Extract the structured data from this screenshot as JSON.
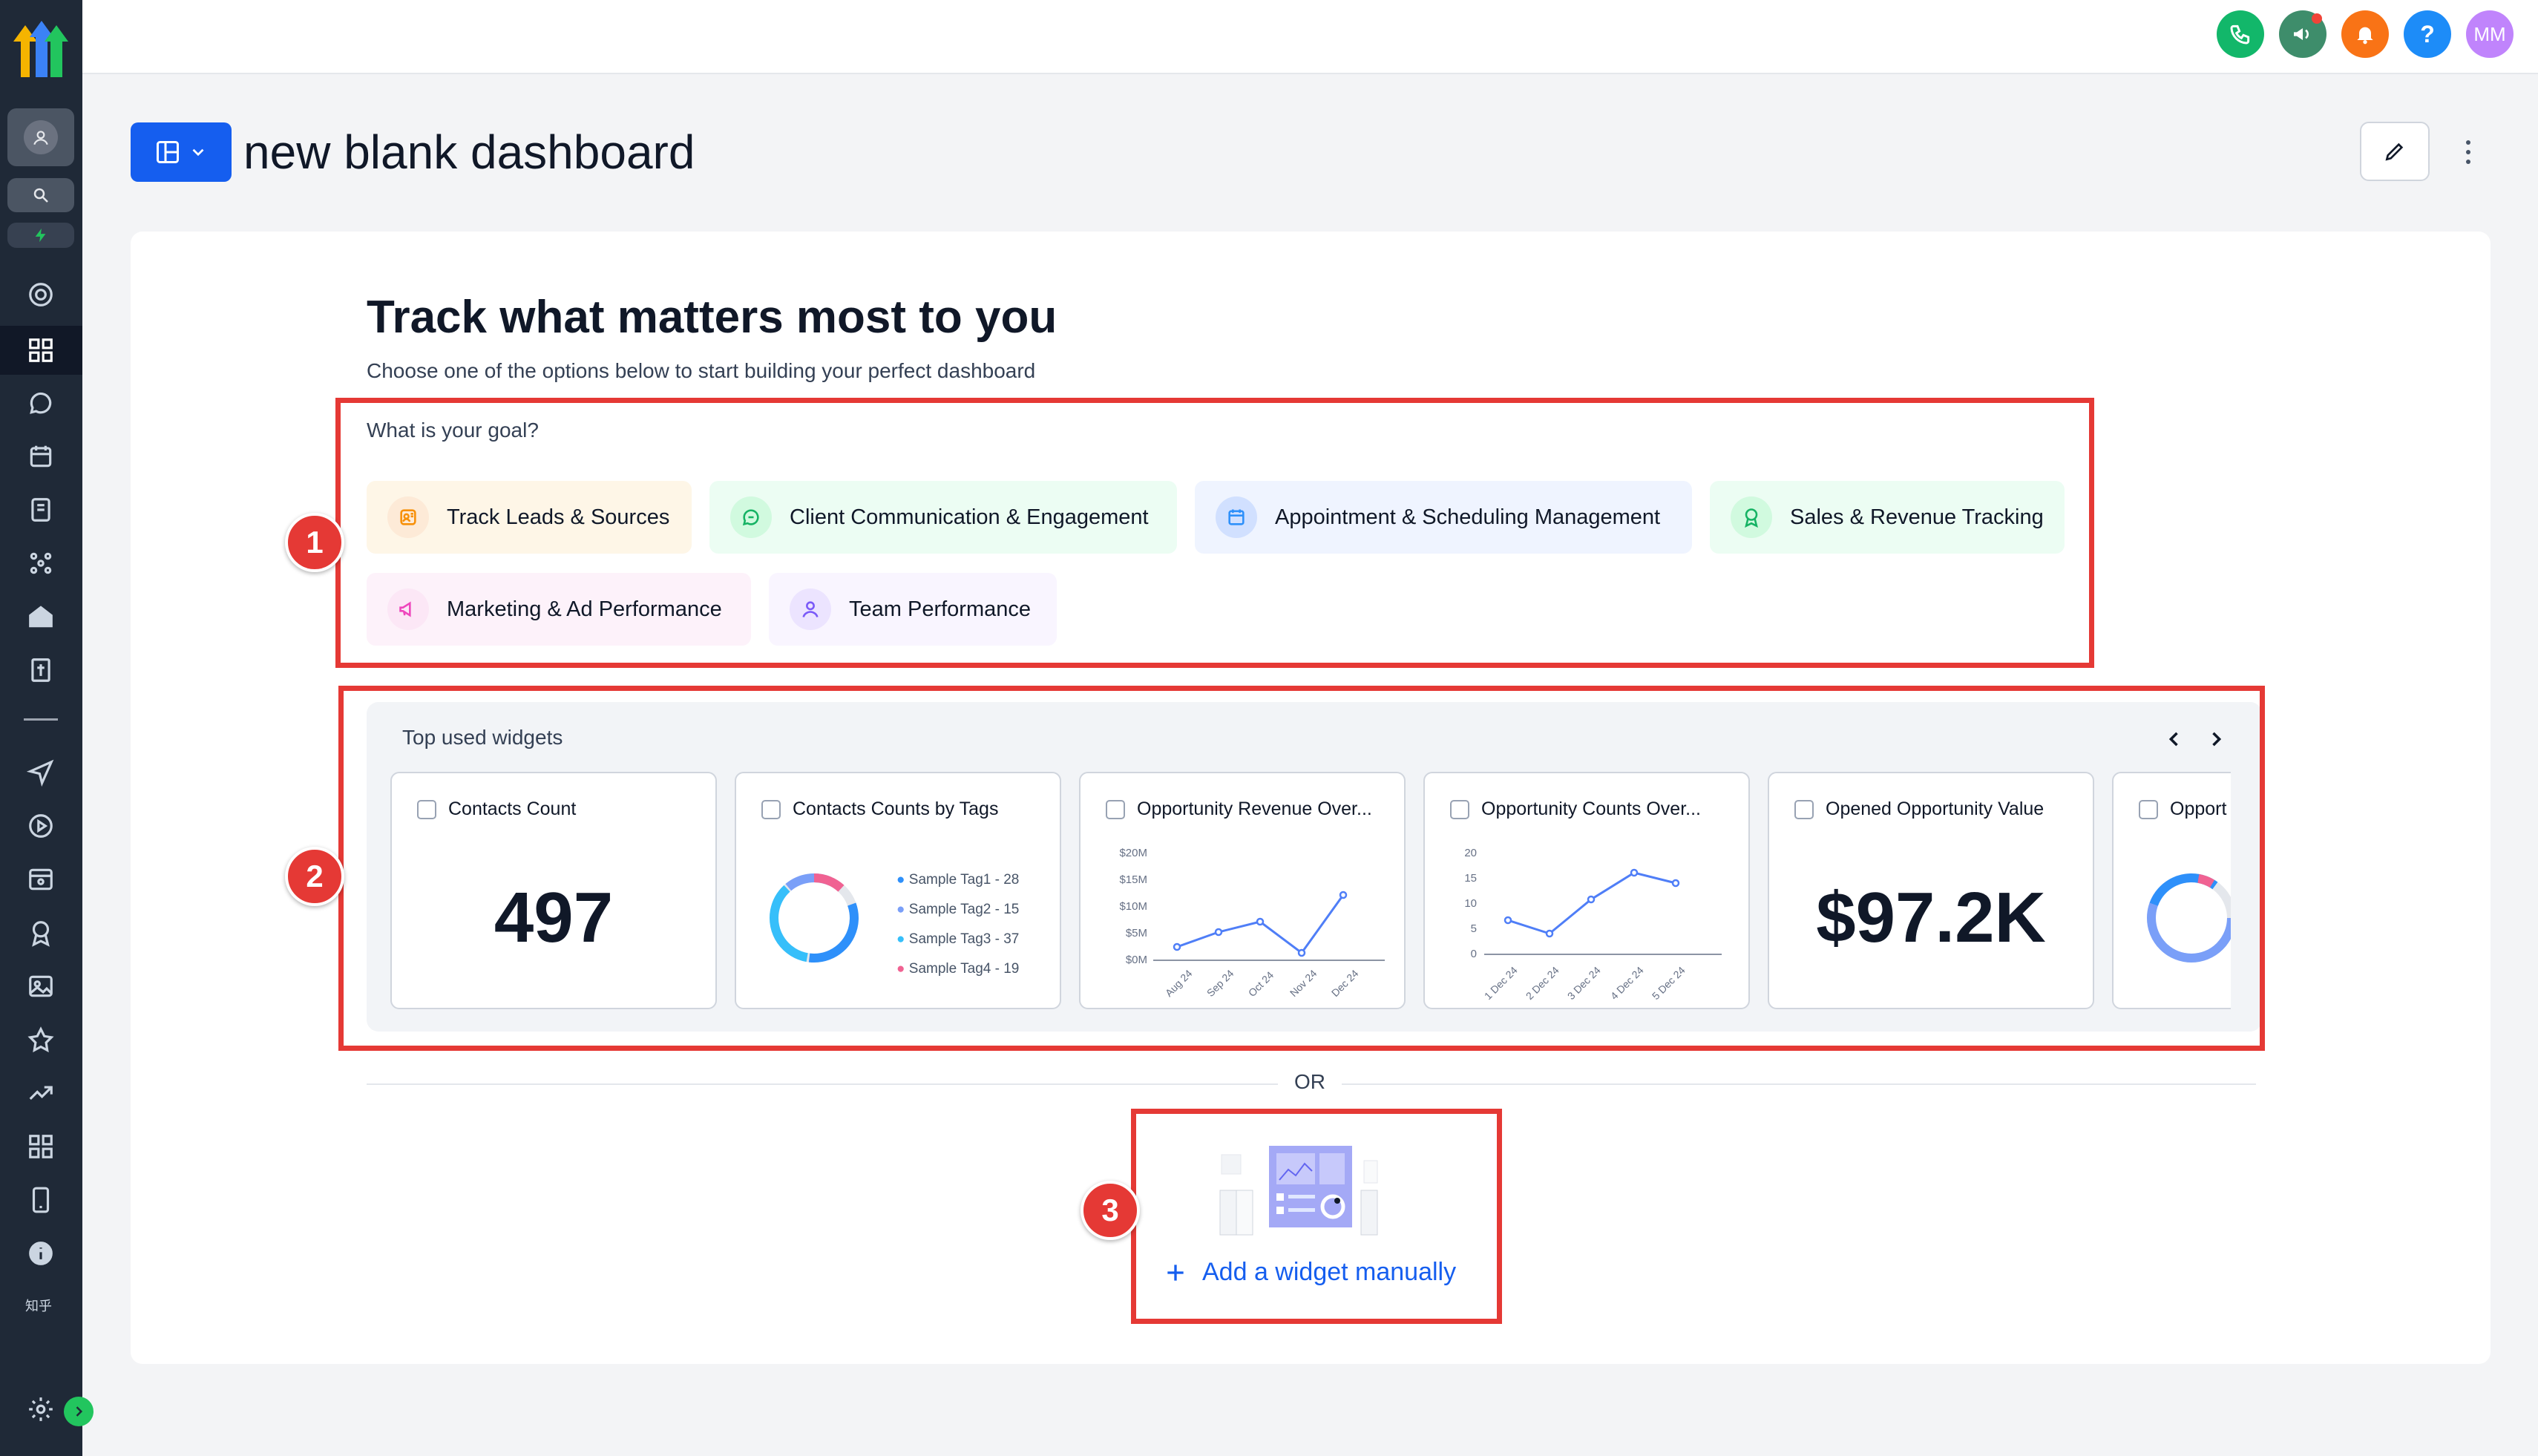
{
  "app": {
    "user_initials": "MM",
    "sidebar_footer_text": "知乎"
  },
  "header": {
    "page_title": "new blank dashboard"
  },
  "intro": {
    "heading": "Track what matters most to you",
    "subheading": "Choose one of the options below to start building your perfect dashboard"
  },
  "goals": {
    "label": "What is your goal?",
    "items": [
      {
        "label": "Track Leads & Sources",
        "icon": "contact-card-icon",
        "color": "#f79009"
      },
      {
        "label": "Client Communication & Engagement",
        "icon": "chat-bubble-icon",
        "color": "#16b364"
      },
      {
        "label": "Appointment & Scheduling Management",
        "icon": "calendar-icon",
        "color": "#2e90fa"
      },
      {
        "label": "Sales & Revenue Tracking",
        "icon": "award-icon",
        "color": "#16b364"
      },
      {
        "label": "Marketing & Ad Performance",
        "icon": "megaphone-icon",
        "color": "#ee46bc"
      },
      {
        "label": "Team Performance",
        "icon": "user-icon",
        "color": "#7a5af8"
      }
    ]
  },
  "widgets": {
    "title": "Top used widgets",
    "cards": [
      {
        "title": "Contacts Count",
        "value": "497"
      },
      {
        "title": "Contacts Counts by Tags",
        "legend": [
          "Sample Tag1 - 28",
          "Sample Tag2 - 15",
          "Sample Tag3 - 37",
          "Sample Tag4 - 19"
        ]
      },
      {
        "title": "Opportunity Revenue Over...",
        "y_ticks": [
          "$20M",
          "$15M",
          "$10M",
          "$5M",
          "$0M"
        ],
        "x_ticks": [
          "Aug 24",
          "Sep 24",
          "Oct 24",
          "Nov 24",
          "Dec 24"
        ]
      },
      {
        "title": "Opportunity Counts Over...",
        "y_ticks": [
          "20",
          "15",
          "10",
          "5",
          "0"
        ],
        "x_ticks": [
          "1 Dec 24",
          "2 Dec 24",
          "3 Dec 24",
          "4 Dec 24",
          "5 Dec 24"
        ]
      },
      {
        "title": "Opened Opportunity Value",
        "value": "$97.2K"
      },
      {
        "title": "Opport"
      }
    ]
  },
  "divider_text": "OR",
  "add_widget_label": "Add a widget manually",
  "annotations": [
    "1",
    "2",
    "3"
  ],
  "colors": {
    "primary": "#155eef",
    "annotation_red": "#e53935",
    "sidebar_bg": "#1f2937"
  }
}
